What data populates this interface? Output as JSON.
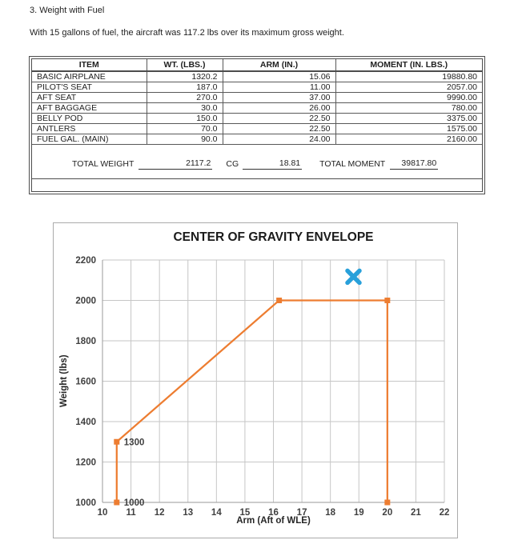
{
  "page": {
    "heading": "3. Weight with Fuel",
    "paragraph": "With 15 gallons of fuel, the aircraft was 117.2 lbs over its maximum gross weight."
  },
  "table": {
    "columns": [
      "ITEM",
      "WT. (LBS.)",
      "ARM (IN.)",
      "MOMENT (IN. LBS.)"
    ],
    "rows": [
      [
        "BASIC AIRPLANE",
        "1320.2",
        "15.06",
        "19880.80"
      ],
      [
        "PILOT'S SEAT",
        "187.0",
        "11.00",
        "2057.00"
      ],
      [
        "AFT SEAT",
        "270.0",
        "37.00",
        "9990.00"
      ],
      [
        "AFT BAGGAGE",
        "30.0",
        "26.00",
        "780.00"
      ],
      [
        "BELLY POD",
        "150.0",
        "22.50",
        "3375.00"
      ],
      [
        "ANTLERS",
        "70.0",
        "22.50",
        "1575.00"
      ],
      [
        "FUEL GAL. (MAIN)",
        "90.0",
        "24.00",
        "2160.00"
      ]
    ],
    "totals": {
      "weight_label": "TOTAL WEIGHT",
      "weight_value": "2117.2",
      "cg_label": "CG",
      "cg_value": "18.81",
      "moment_label": "TOTAL MOMENT",
      "moment_value": "39817.80"
    }
  },
  "chart_data": {
    "type": "line",
    "title": "CENTER OF GRAVITY ENVELOPE",
    "xlabel": "Arm (Aft of WLE)",
    "ylabel": "Weight (lbs)",
    "xlim": [
      10,
      22
    ],
    "ylim": [
      1000,
      2200
    ],
    "x_ticks": [
      10,
      11,
      12,
      13,
      14,
      15,
      16,
      17,
      18,
      19,
      20,
      21,
      22
    ],
    "y_ticks": [
      1000,
      1200,
      1400,
      1600,
      1800,
      2000,
      2200
    ],
    "grid": true,
    "legend": "none",
    "colors": {
      "envelope": "#ED7D31",
      "aircraft_point": "#28A0DA",
      "gridline": "#c6c6c6",
      "axis_line": "#9a9a9a"
    },
    "series": [
      {
        "name": "cg-envelope",
        "marker": "square",
        "points": [
          [
            10.5,
            1000
          ],
          [
            10.5,
            1300
          ],
          [
            16.2,
            2000
          ],
          [
            20,
            2000
          ],
          [
            20,
            1000
          ]
        ],
        "point_labels": [
          {
            "x": 10.5,
            "y": 1300,
            "text": "1300"
          },
          {
            "x": 10.5,
            "y": 1000,
            "text": "1000"
          }
        ]
      },
      {
        "name": "aircraft-cg-point",
        "marker": "x",
        "points": [
          [
            18.81,
            2117.2
          ]
        ],
        "point_labels": []
      }
    ]
  }
}
